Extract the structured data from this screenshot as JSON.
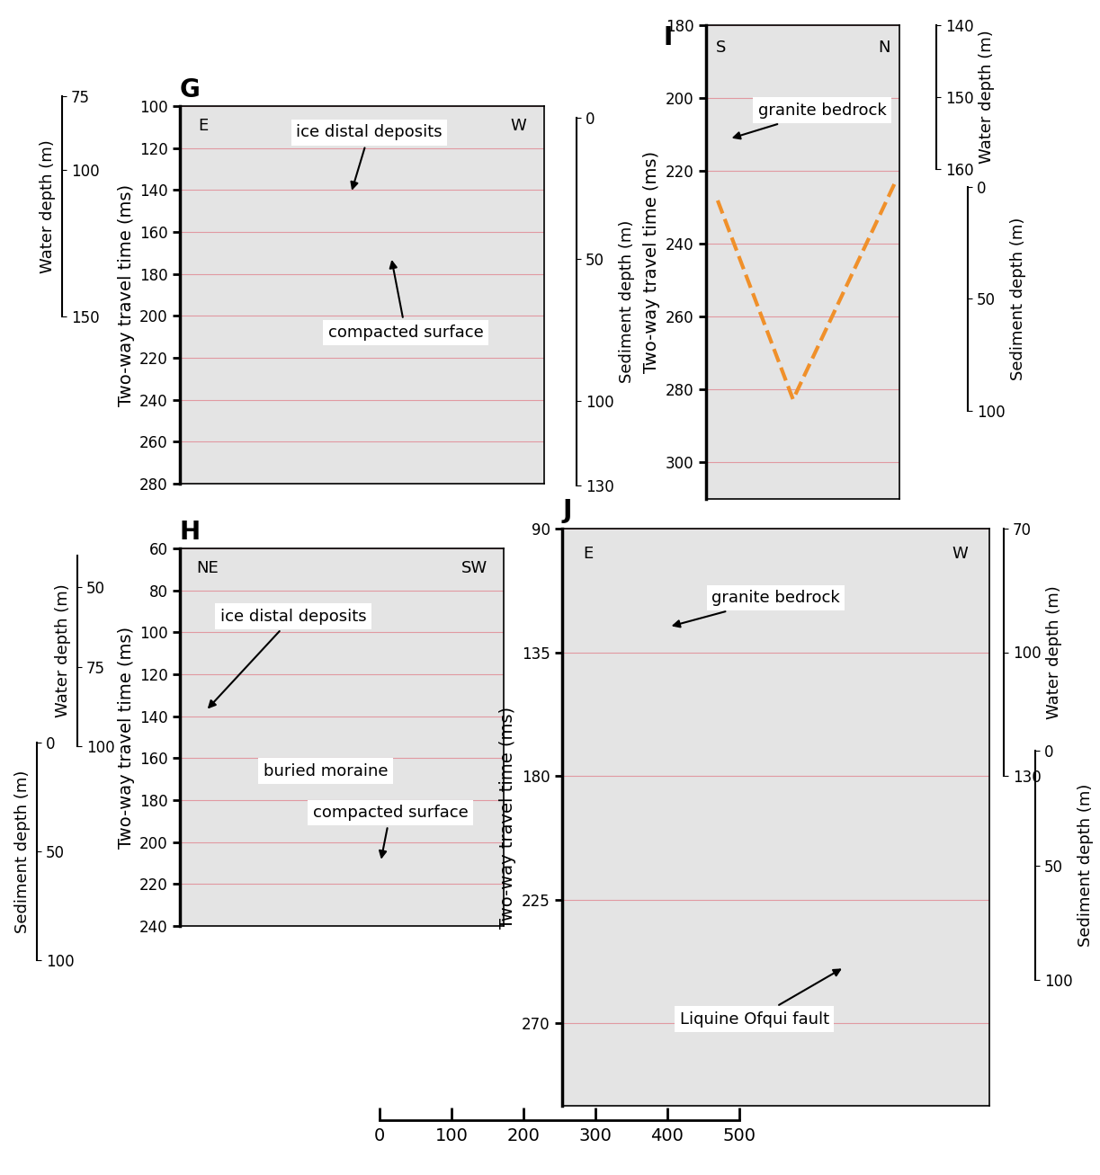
{
  "chart_data": [
    {
      "type": "seismic_profile",
      "title": "G",
      "directions": [
        "E",
        "W"
      ],
      "ylabel": "Two-way travel time (ms)",
      "ylim": [
        100,
        280
      ],
      "yticks": [
        100,
        120,
        140,
        160,
        180,
        200,
        220,
        240,
        260,
        280
      ],
      "grid": true,
      "tick_labels": "y",
      "water_depth": {
        "label": "Water depth (m)",
        "lim": [
          75,
          150
        ],
        "ticks": [
          75,
          100,
          150
        ]
      },
      "sediment_depth": {
        "label": "Sediment depth (m)",
        "lim": [
          0,
          130
        ],
        "ticks": [
          0,
          50,
          100,
          130
        ]
      },
      "annotations": [
        "ice distal deposits",
        "compacted surface"
      ]
    },
    {
      "type": "seismic_profile",
      "title": "H",
      "directions": [
        "NE",
        "SW"
      ],
      "ylabel": "Two-way travel time (ms)",
      "ylim": [
        60,
        240
      ],
      "yticks": [
        60,
        80,
        100,
        120,
        140,
        160,
        180,
        200,
        220,
        240
      ],
      "grid": true,
      "tick_labels": "y",
      "water_depth": {
        "label": "Water depth (m)",
        "lim": [
          40,
          100
        ],
        "ticks": [
          50,
          75,
          100
        ]
      },
      "sediment_depth": {
        "label": "Sediment depth (m)",
        "lim": [
          0,
          100
        ],
        "ticks": [
          0,
          50,
          100
        ]
      },
      "annotations": [
        "ice distal deposits",
        "buried moraine",
        "compacted surface"
      ]
    },
    {
      "type": "seismic_profile",
      "title": "I",
      "directions": [
        "S",
        "N"
      ],
      "ylabel": "Two-way travel time (ms)",
      "ylim": [
        180,
        310
      ],
      "yticks": [
        180,
        200,
        220,
        240,
        260,
        280,
        300
      ],
      "grid": true,
      "tick_labels": "y",
      "water_depth": {
        "label": "Water depth (m)",
        "lim": [
          140,
          160
        ],
        "ticks": [
          140,
          150,
          160
        ]
      },
      "sediment_depth": {
        "label": "Sediment depth (m)",
        "lim": [
          0,
          100
        ],
        "ticks": [
          0,
          50,
          100
        ]
      },
      "annotations": [
        "granite bedrock"
      ]
    },
    {
      "type": "seismic_profile",
      "title": "J",
      "directions": [
        "E",
        "W"
      ],
      "ylabel": "Two-way travel time (ms)",
      "ylim": [
        90,
        300
      ],
      "yticks": [
        90,
        135,
        180,
        225,
        270
      ],
      "grid": true,
      "tick_labels": "y",
      "water_depth": {
        "label": "Water depth (m)",
        "lim": [
          70,
          130
        ],
        "ticks": [
          70,
          100,
          130
        ]
      },
      "sediment_depth": {
        "label": "Sediment depth (m)",
        "lim": [
          0,
          100
        ],
        "ticks": [
          0,
          50,
          100
        ]
      },
      "annotations": [
        "granite bedrock",
        "Liquine Ofqui fault"
      ]
    }
  ],
  "scale_bar": {
    "xlim": [
      0,
      500
    ],
    "xticks": [
      0,
      100,
      200,
      300,
      400,
      500
    ]
  }
}
